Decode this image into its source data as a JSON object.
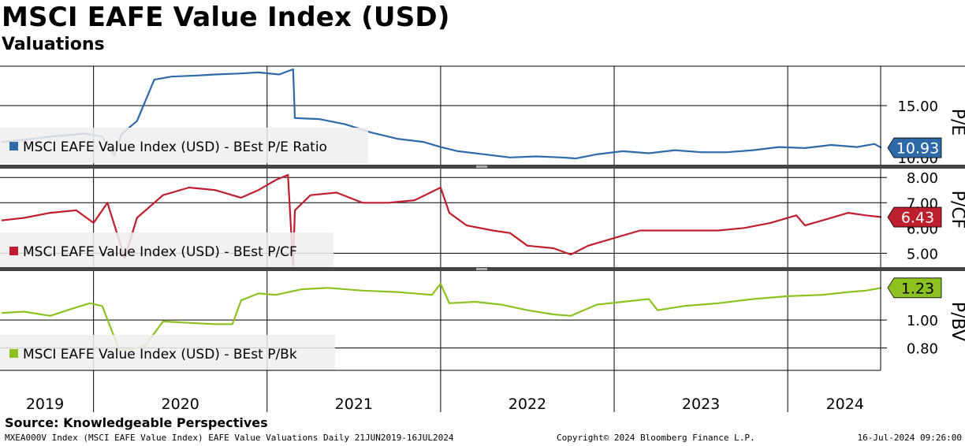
{
  "header": {
    "title": "MSCI EAFE Value Index (USD)",
    "subtitle": "Valuations"
  },
  "footer": {
    "source": "Source: Knowledgeable Perspectives",
    "description": "MXEA000V Index (MSCI EAFE Value Index) EAFE Value Valuations  Daily 21JUN2019-16JUL2024",
    "copyright": "Copyright© 2024 Bloomberg Finance L.P.",
    "timestamp": "16-Jul-2024 09:26:00"
  },
  "colors": {
    "pe": "#2e6aa8",
    "pcf": "#be1e2d",
    "pbk": "#8cc21f",
    "grid": "#000000",
    "legend_bg": "#efefef"
  },
  "chart_data": [
    {
      "type": "line",
      "panel": "top",
      "series_name": "MSCI EAFE Value Index (USD) - BEst P/E Ratio",
      "ylabel": "P/E",
      "ylim": [
        9.3,
        18.8
      ],
      "ticks": [
        15.0
      ],
      "tick_labels": [
        "15.00"
      ],
      "hidden_tick_label": "10.00",
      "last_value_label": "10.93",
      "x": [
        2019.47,
        2019.6,
        2019.75,
        2019.95,
        2020.05,
        2020.12,
        2020.16,
        2020.2,
        2020.25,
        2020.32,
        2020.35,
        2020.45,
        2020.6,
        2020.7,
        2020.85,
        2020.95,
        2021.07,
        2021.15,
        2021.16,
        2021.3,
        2021.45,
        2021.6,
        2021.75,
        2021.9,
        2022.0,
        2022.1,
        2022.25,
        2022.4,
        2022.55,
        2022.7,
        2022.78,
        2022.9,
        2023.05,
        2023.2,
        2023.35,
        2023.5,
        2023.65,
        2023.8,
        2023.95,
        2024.1,
        2024.25,
        2024.4,
        2024.5,
        2024.54
      ],
      "y": [
        11.5,
        11.7,
        12.0,
        12.3,
        12.0,
        10.2,
        12.2,
        12.8,
        13.5,
        16.3,
        17.5,
        17.8,
        17.9,
        18.0,
        18.1,
        18.2,
        18.0,
        18.5,
        13.8,
        13.7,
        13.2,
        12.4,
        11.8,
        11.5,
        11.0,
        10.6,
        10.3,
        10.0,
        10.1,
        10.0,
        9.9,
        10.3,
        10.6,
        10.4,
        10.7,
        10.5,
        10.5,
        10.7,
        11.0,
        10.9,
        11.2,
        11.0,
        11.3,
        10.93
      ]
    },
    {
      "type": "line",
      "panel": "middle",
      "series_name": "MSCI EAFE Value Index (USD) - BEst P/CF",
      "ylabel": "P/CF",
      "ylim": [
        4.45,
        8.35
      ],
      "ticks": [
        8.0,
        7.0,
        5.0
      ],
      "tick_labels": [
        "8.00",
        "7.00",
        "5.00"
      ],
      "hidden_tick_label": "6.00",
      "last_value_label": "6.43",
      "x": [
        2019.47,
        2019.6,
        2019.75,
        2019.9,
        2020.0,
        2020.08,
        2020.18,
        2020.25,
        2020.4,
        2020.55,
        2020.7,
        2020.85,
        2020.95,
        2021.05,
        2021.12,
        2021.15,
        2021.16,
        2021.25,
        2021.4,
        2021.55,
        2021.7,
        2021.85,
        2022.0,
        2022.05,
        2022.15,
        2022.3,
        2022.4,
        2022.5,
        2022.65,
        2022.75,
        2022.85,
        2023.0,
        2023.15,
        2023.3,
        2023.45,
        2023.6,
        2023.75,
        2023.9,
        2024.05,
        2024.1,
        2024.2,
        2024.35,
        2024.45,
        2024.54
      ],
      "y": [
        6.3,
        6.4,
        6.6,
        6.7,
        6.2,
        7.0,
        4.8,
        6.4,
        7.3,
        7.6,
        7.5,
        7.2,
        7.5,
        7.9,
        8.1,
        4.5,
        6.7,
        7.3,
        7.4,
        7.0,
        7.0,
        7.1,
        7.6,
        6.6,
        6.1,
        5.9,
        5.8,
        5.3,
        5.2,
        4.95,
        5.3,
        5.6,
        5.9,
        5.9,
        5.9,
        5.9,
        6.0,
        6.2,
        6.5,
        6.1,
        6.3,
        6.6,
        6.5,
        6.43
      ]
    },
    {
      "type": "line",
      "panel": "bottom",
      "series_name": "MSCI EAFE Value Index (USD) - BEst P/Bk",
      "ylabel": "P/BV",
      "ylim": [
        0.64,
        1.35
      ],
      "ticks": [
        1.0,
        0.8
      ],
      "tick_labels": [
        "1.00",
        "0.80"
      ],
      "last_value_label": "1.23",
      "x": [
        2019.47,
        2019.6,
        2019.75,
        2019.9,
        2019.98,
        2020.05,
        2020.15,
        2020.25,
        2020.3,
        2020.4,
        2020.55,
        2020.7,
        2020.8,
        2020.85,
        2020.95,
        2021.05,
        2021.2,
        2021.35,
        2021.55,
        2021.75,
        2021.95,
        2022.0,
        2022.05,
        2022.2,
        2022.35,
        2022.5,
        2022.65,
        2022.75,
        2022.9,
        2023.05,
        2023.2,
        2023.25,
        2023.4,
        2023.6,
        2023.8,
        2024.0,
        2024.2,
        2024.35,
        2024.45,
        2024.54
      ],
      "y": [
        1.05,
        1.06,
        1.03,
        1.09,
        1.12,
        1.1,
        0.78,
        0.8,
        0.82,
        0.99,
        0.98,
        0.97,
        0.97,
        1.14,
        1.19,
        1.18,
        1.22,
        1.23,
        1.21,
        1.2,
        1.18,
        1.26,
        1.12,
        1.13,
        1.11,
        1.07,
        1.04,
        1.03,
        1.11,
        1.13,
        1.15,
        1.07,
        1.1,
        1.12,
        1.15,
        1.17,
        1.18,
        1.2,
        1.21,
        1.23
      ]
    }
  ],
  "x_axis": {
    "year_labels": [
      "2019",
      "2020",
      "2021",
      "2022",
      "2023",
      "2024"
    ],
    "year_label_positions": [
      2019.72,
      2020.5,
      2021.5,
      2022.5,
      2023.5,
      2024.33
    ],
    "year_boundaries": [
      2020.0,
      2021.0,
      2022.0,
      2023.0,
      2024.0
    ],
    "range": [
      2019.47,
      2024.54
    ]
  }
}
